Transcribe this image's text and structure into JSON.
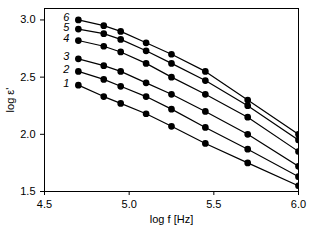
{
  "chart_data": {
    "type": "line",
    "x_label": "log f [Hz]",
    "y_label": "log ε'",
    "xlim": [
      4.5,
      6.0
    ],
    "ylim": [
      1.5,
      3.1
    ],
    "xticks": [
      4.5,
      5.0,
      5.5,
      6.0
    ],
    "yticks": [
      1.5,
      2.0,
      2.5,
      3.0
    ],
    "grid": false,
    "color": "#000000",
    "marker": "circle",
    "line_style": "solid",
    "x": [
      4.7,
      4.85,
      4.95,
      5.1,
      5.25,
      5.45,
      5.7,
      6.0
    ],
    "series": [
      {
        "name": "1",
        "values": [
          2.43,
          2.33,
          2.27,
          2.18,
          2.07,
          1.92,
          1.75,
          1.55
        ]
      },
      {
        "name": "2",
        "values": [
          2.55,
          2.48,
          2.42,
          2.33,
          2.22,
          2.06,
          1.87,
          1.63
        ]
      },
      {
        "name": "3",
        "values": [
          2.66,
          2.6,
          2.55,
          2.45,
          2.35,
          2.2,
          2.0,
          1.72
        ]
      },
      {
        "name": "4",
        "values": [
          2.82,
          2.77,
          2.72,
          2.62,
          2.5,
          2.35,
          2.15,
          1.85
        ]
      },
      {
        "name": "5",
        "values": [
          2.92,
          2.88,
          2.83,
          2.73,
          2.62,
          2.47,
          2.25,
          1.95
        ]
      },
      {
        "name": "6",
        "values": [
          3.0,
          2.95,
          2.9,
          2.8,
          2.7,
          2.55,
          2.3,
          2.0
        ]
      }
    ]
  }
}
